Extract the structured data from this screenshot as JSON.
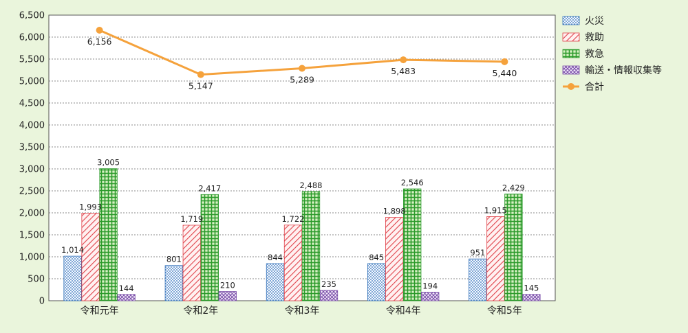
{
  "chart_data": {
    "type": "bar",
    "categories": [
      "令和元年",
      "令和2年",
      "令和3年",
      "令和4年",
      "令和5年"
    ],
    "series": [
      {
        "name": "火災",
        "values": [
          1014,
          801,
          844,
          845,
          951
        ],
        "labels": [
          "1,014",
          "801",
          "844",
          "845",
          "951"
        ],
        "color": "#2f6fb8",
        "fill": "#f4f8ff"
      },
      {
        "name": "救助",
        "values": [
          1993,
          1719,
          1722,
          1898,
          1915
        ],
        "labels": [
          "1,993",
          "1,719",
          "1,722",
          "1,898",
          "1,915"
        ],
        "color": "#e0424a",
        "fill": "#fff1f1"
      },
      {
        "name": "救急",
        "values": [
          3005,
          2417,
          2488,
          2546,
          2429
        ],
        "labels": [
          "3,005",
          "2,417",
          "2,488",
          "2,546",
          "2,429"
        ],
        "color": "#2a9a2a",
        "fill": "#dff3cf"
      },
      {
        "name": "輸送・情報収集等",
        "values": [
          144,
          210,
          235,
          194,
          145
        ],
        "labels": [
          "144",
          "210",
          "235",
          "194",
          "145"
        ],
        "color": "#7a4ea8",
        "fill": "#f3ecfb"
      }
    ],
    "line": {
      "name": "合計",
      "values": [
        6156,
        5147,
        5289,
        5483,
        5440
      ],
      "labels": [
        "6,156",
        "5,147",
        "5,289",
        "5,483",
        "5,440"
      ],
      "color": "#f5a23c"
    },
    "ylim": [
      0,
      6500
    ],
    "yticks": [
      "0",
      "500",
      "1,000",
      "1,500",
      "2,000",
      "2,500",
      "3,000",
      "3,500",
      "4,000",
      "4,500",
      "5,000",
      "5,500",
      "6,000",
      "6,500"
    ],
    "grid": true,
    "legend": "right"
  }
}
